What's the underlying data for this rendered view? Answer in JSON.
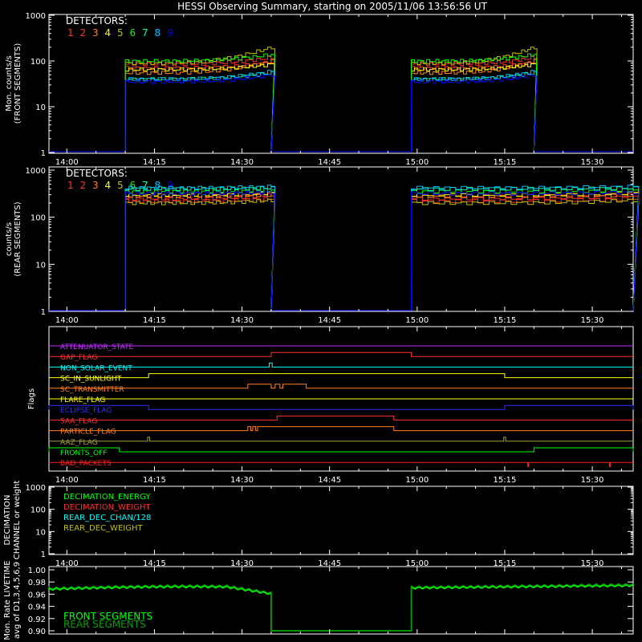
{
  "title": "HESSI Observing Summary, starting on 2005/11/06 13:56:56 UT",
  "time_axis": {
    "start": "13:56:56",
    "end": "15:37:00",
    "tick_labels": [
      "14:00",
      "14:15",
      "14:30",
      "14:45",
      "15:00",
      "15:15",
      "15:30"
    ]
  },
  "detector_colors": [
    "#ff3030",
    "#ff3030",
    "#ff8020",
    "#ffff00",
    "#c0c000",
    "#00ff00",
    "#00ffa0",
    "#00c0ff",
    "#0000ff"
  ],
  "panels": {
    "front": {
      "ylabel_1": "Mon. counts/s",
      "ylabel_2": "(FRONT SEGMENTS)",
      "detectors_label": "DETECTORS:",
      "detector_numbers": [
        "1",
        "2",
        "3",
        "4",
        "5",
        "6",
        "7",
        "8",
        "9"
      ],
      "y_ticks": [
        "1",
        "10",
        "100",
        "1000"
      ]
    },
    "rear": {
      "ylabel_1": "counts/s",
      "ylabel_2": "(REAR SEGMENTS)",
      "detectors_label": "DETECTORS:",
      "detector_numbers": [
        "1",
        "2",
        "3",
        "4",
        "5",
        "6",
        "7",
        "8",
        "9"
      ],
      "y_ticks": [
        "1",
        "10",
        "100",
        "1000"
      ]
    },
    "flags": {
      "ylabel": "Flags",
      "items": [
        {
          "name": "ATTENUATOR_STATE",
          "color": "#c030ff"
        },
        {
          "name": "GAP_FLAG",
          "color": "#ff3030"
        },
        {
          "name": "NON_SOLAR_EVENT",
          "color": "#00ffff"
        },
        {
          "name": "SC_IN_SUNLIGHT",
          "color": "#ffff00"
        },
        {
          "name": "SC_TRANSMITTER",
          "color": "#ff8020"
        },
        {
          "name": "FLARE_FLAG",
          "color": "#ffff00"
        },
        {
          "name": "ECLIPSE_FLAG",
          "color": "#3030ff"
        },
        {
          "name": "SAA_FLAG",
          "color": "#ff3030"
        },
        {
          "name": "PARTICLE_FLAG",
          "color": "#ff8020"
        },
        {
          "name": "AAZ_FLAG",
          "color": "#a0a040"
        },
        {
          "name": "FRONTS_OFF",
          "color": "#00ff00"
        },
        {
          "name": "BAD_PACKETS",
          "color": "#ff2020"
        }
      ]
    },
    "decimation": {
      "ylabel_1": "DECIMATION",
      "ylabel_2": "CHANNEL or weight",
      "y_ticks": [
        "1",
        "10",
        "100",
        "1000"
      ],
      "legend": [
        {
          "label": "DECIMATION_ENERGY",
          "color": "#00ff00"
        },
        {
          "label": "DECIMATION_WEIGHT",
          "color": "#ff3030"
        },
        {
          "label": "REAR_DEC_CHAN/128",
          "color": "#00ffff"
        },
        {
          "label": "REAR_DEC_WEIGHT",
          "color": "#c0c000"
        }
      ]
    },
    "livetime": {
      "ylabel_1": "Mon. Rate LIVETIME",
      "ylabel_2": "avg of D1,3,4,5,6,9",
      "y_ticks": [
        "0.90",
        "0.92",
        "0.94",
        "0.96",
        "0.98",
        "1.00"
      ],
      "legend": [
        {
          "label": "FRONT SEGMENTS",
          "color": "#00ff00"
        },
        {
          "label": "REAR SEGMENTS",
          "color": "#00a000"
        }
      ]
    }
  },
  "chart_data": [
    {
      "type": "line",
      "panel": "front",
      "ylabel": "Mon. counts/s (FRONT SEGMENTS)",
      "yscale": "log",
      "ylim": [
        1,
        1000
      ],
      "observing_intervals": [
        [
          "14:10",
          "14:35"
        ],
        [
          "14:59",
          "15:20"
        ]
      ],
      "series": [
        {
          "name": "1",
          "start": 85,
          "end": 120
        },
        {
          "name": "2",
          "start": 70,
          "end": 95
        },
        {
          "name": "3",
          "start": 55,
          "end": 100
        },
        {
          "name": "4",
          "start": 65,
          "end": 85
        },
        {
          "name": "5",
          "start": 90,
          "end": 200
        },
        {
          "name": "6",
          "start": 100,
          "end": 140
        },
        {
          "name": "7",
          "start": 40,
          "end": 55
        },
        {
          "name": "8",
          "start": 40,
          "end": 60
        },
        {
          "name": "9",
          "start": 35,
          "end": 50
        }
      ]
    },
    {
      "type": "line",
      "panel": "rear",
      "ylabel": "counts/s (REAR SEGMENTS)",
      "yscale": "log",
      "ylim": [
        1,
        1000
      ],
      "observing_intervals": [
        [
          "14:10",
          "14:35"
        ],
        [
          "14:59",
          "15:37"
        ]
      ],
      "series": [
        {
          "name": "1",
          "start": 250,
          "end": 300
        },
        {
          "name": "2",
          "start": 220,
          "end": 250
        },
        {
          "name": "3",
          "start": 280,
          "end": 300
        },
        {
          "name": "4",
          "start": 300,
          "end": 330
        },
        {
          "name": "5",
          "start": 200,
          "end": 230
        },
        {
          "name": "6",
          "start": 350,
          "end": 380
        },
        {
          "name": "7",
          "start": 400,
          "end": 420
        },
        {
          "name": "8",
          "start": 420,
          "end": 450
        },
        {
          "name": "9",
          "start": 320,
          "end": 340
        }
      ]
    },
    {
      "type": "line",
      "panel": "livetime",
      "ylabel": "Mon. Rate LIVETIME avg of D1,3,4,5,6,9",
      "ylim": [
        0.9,
        1.0
      ],
      "observing_intervals": [
        [
          "14:10",
          "14:35"
        ],
        [
          "14:59",
          "15:37"
        ]
      ],
      "series": [
        {
          "name": "FRONT SEGMENTS",
          "values": [
            0.968,
            0.972,
            0.962,
            0.964,
            0.97,
            0.974
          ]
        },
        {
          "name": "REAR SEGMENTS",
          "values": [
            0.97,
            0.974,
            0.966,
            0.968,
            0.972,
            0.976
          ]
        }
      ]
    }
  ]
}
